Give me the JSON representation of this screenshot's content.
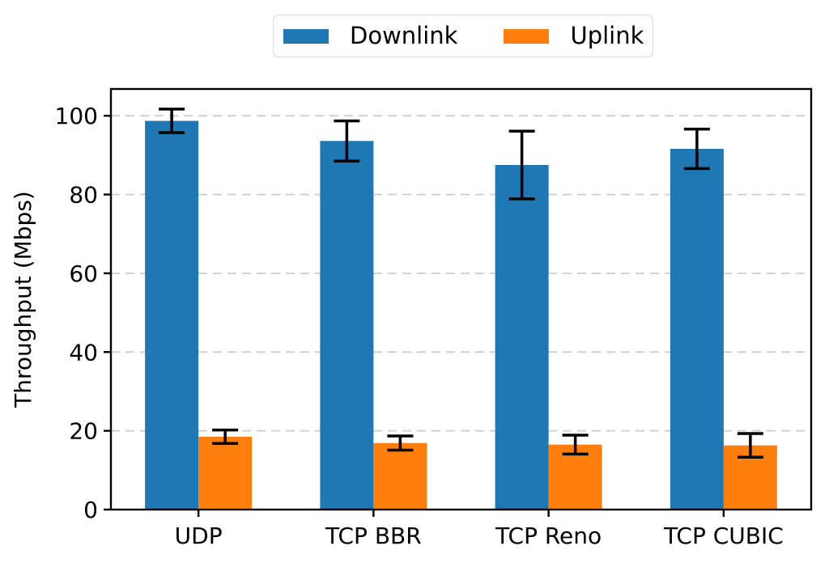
{
  "chart_data": {
    "type": "bar",
    "title": "",
    "xlabel": "",
    "ylabel": "Throughput (Mbps)",
    "categories": [
      "UDP",
      "TCP BBR",
      "TCP Reno",
      "TCP CUBIC"
    ],
    "series": [
      {
        "name": "Downlink",
        "color": "#1f77b4",
        "values": [
          98.7,
          93.6,
          87.5,
          91.6
        ],
        "errors": [
          3.0,
          5.1,
          8.6,
          5.0
        ]
      },
      {
        "name": "Uplink",
        "color": "#ff7f0e",
        "values": [
          18.5,
          16.9,
          16.5,
          16.3
        ],
        "errors": [
          1.7,
          1.8,
          2.4,
          3.0
        ]
      }
    ],
    "yticks": [
      0,
      20,
      40,
      60,
      80,
      100
    ],
    "ylim": [
      0,
      106.8
    ],
    "grid": {
      "axis": "y",
      "style": "dashed",
      "color": "#cccccc"
    },
    "error_bar_color": "#000000",
    "legend_position": "top-center",
    "frame": "full-box"
  }
}
